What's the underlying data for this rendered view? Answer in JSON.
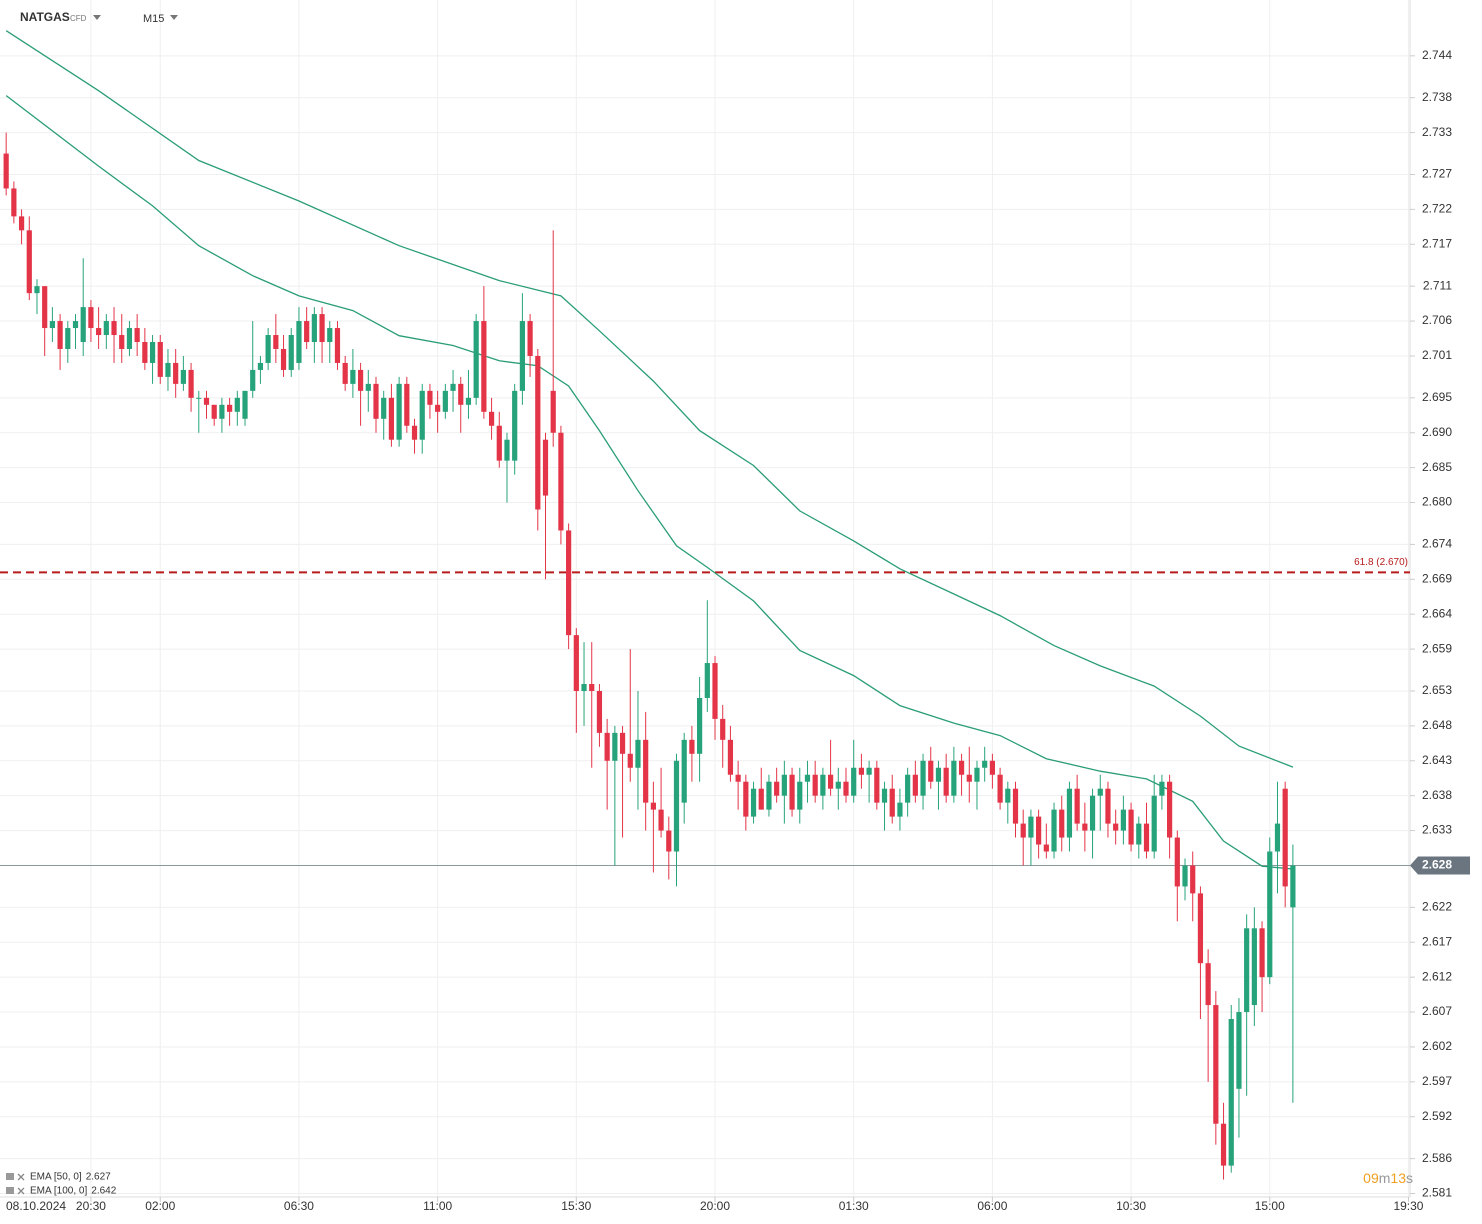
{
  "chart_data": {
    "type": "candlestick",
    "symbol": "NATGAS",
    "symbol_type": "CFD",
    "timeframe": "M15",
    "ylim": [
      2.5805,
      2.752
    ],
    "xlim": [
      -0.8,
      182.2
    ],
    "yticks": [
      2.744,
      2.738,
      2.733,
      2.727,
      2.722,
      2.717,
      2.711,
      2.706,
      2.701,
      2.695,
      {
        "value": 2.69,
        "label": "2.690"
      },
      2.685,
      {
        "value": 2.68,
        "label": "2.680"
      },
      2.674,
      2.669,
      2.664,
      2.659,
      2.653,
      2.648,
      2.643,
      2.638,
      2.633,
      2.622,
      2.617,
      2.612,
      2.607,
      2.602,
      2.597,
      2.592,
      2.586,
      2.581
    ],
    "date_label": "08.10.2024",
    "xticks": [
      {
        "value": 11,
        "label": "20:30"
      },
      {
        "value": 20,
        "label": "02:00"
      },
      {
        "value": 38,
        "label": "06:30"
      },
      {
        "value": 56,
        "label": "11:00"
      },
      {
        "value": 74,
        "label": "15:30"
      },
      {
        "value": 92,
        "label": "20:00"
      },
      {
        "value": 110,
        "label": "01:30"
      },
      {
        "value": 128,
        "label": "06:00"
      },
      {
        "value": 146,
        "label": "10:30"
      },
      {
        "value": 164,
        "label": "15:00"
      },
      {
        "value": 182,
        "label": "19:30"
      }
    ],
    "grid": true,
    "up_color": "#26a37a",
    "down_color": "#e33448",
    "current_price": 2.628,
    "fib_level": {
      "value": 2.67,
      "label": "61.8 (2.670)",
      "color": "#b71c1c"
    },
    "timer": {
      "minutes": "09",
      "m": "m",
      "seconds": "13",
      "s": "s"
    },
    "candles": [
      [
        2.73,
        2.733,
        2.724,
        2.725
      ],
      [
        2.725,
        2.726,
        2.72,
        2.721
      ],
      [
        2.721,
        2.722,
        2.717,
        2.719
      ],
      [
        2.719,
        2.721,
        2.709,
        2.71
      ],
      [
        2.71,
        2.712,
        2.707,
        2.711
      ],
      [
        2.711,
        2.711,
        2.701,
        2.705
      ],
      [
        2.705,
        2.708,
        2.703,
        2.706
      ],
      [
        2.706,
        2.707,
        2.699,
        2.702
      ],
      [
        2.702,
        2.706,
        2.7,
        2.705
      ],
      [
        2.705,
        2.707,
        2.702,
        2.706
      ],
      [
        2.703,
        2.715,
        2.701,
        2.708
      ],
      [
        2.708,
        2.709,
        2.703,
        2.705
      ],
      [
        2.705,
        2.708,
        2.702,
        2.704
      ],
      [
        2.704,
        2.707,
        2.702,
        2.706
      ],
      [
        2.706,
        2.708,
        2.7,
        2.704
      ],
      [
        2.704,
        2.707,
        2.7,
        2.702
      ],
      [
        2.702,
        2.706,
        2.701,
        2.705
      ],
      [
        2.705,
        2.707,
        2.701,
        2.703
      ],
      [
        2.703,
        2.705,
        2.699,
        2.7
      ],
      [
        2.7,
        2.704,
        2.697,
        2.703
      ],
      [
        2.703,
        2.704,
        2.697,
        2.698
      ],
      [
        2.698,
        2.702,
        2.696,
        2.7
      ],
      [
        2.7,
        2.702,
        2.695,
        2.697
      ],
      [
        2.697,
        2.701,
        2.696,
        2.699
      ],
      [
        2.699,
        2.7,
        2.693,
        2.695
      ],
      [
        2.695,
        2.696,
        2.69,
        2.695
      ],
      [
        2.695,
        2.696,
        2.692,
        2.694
      ],
      [
        2.694,
        2.694,
        2.691,
        2.692
      ],
      [
        2.692,
        2.695,
        2.69,
        2.694
      ],
      [
        2.694,
        2.695,
        2.691,
        2.693
      ],
      [
        2.693,
        2.696,
        2.691,
        2.695
      ],
      [
        2.692,
        2.696,
        2.691,
        2.696
      ],
      [
        2.696,
        2.706,
        2.695,
        2.699
      ],
      [
        2.699,
        2.701,
        2.697,
        2.7
      ],
      [
        2.7,
        2.705,
        2.699,
        2.704
      ],
      [
        2.704,
        2.707,
        2.7,
        2.702
      ],
      [
        2.702,
        2.704,
        2.698,
        2.699
      ],
      [
        2.699,
        2.705,
        2.698,
        2.704
      ],
      [
        2.7,
        2.708,
        2.699,
        2.706
      ],
      [
        2.706,
        2.708,
        2.702,
        2.703
      ],
      [
        2.703,
        2.708,
        2.7,
        2.707
      ],
      [
        2.707,
        2.708,
        2.7,
        2.703
      ],
      [
        2.703,
        2.706,
        2.7,
        2.705
      ],
      [
        2.705,
        2.706,
        2.699,
        2.7
      ],
      [
        2.7,
        2.701,
        2.696,
        2.697
      ],
      [
        2.697,
        2.702,
        2.695,
        2.699
      ],
      [
        2.699,
        2.7,
        2.691,
        2.696
      ],
      [
        2.696,
        2.699,
        2.693,
        2.697
      ],
      [
        2.697,
        2.698,
        2.69,
        2.692
      ],
      [
        2.692,
        2.696,
        2.689,
        2.695
      ],
      [
        2.695,
        2.697,
        2.688,
        2.689
      ],
      [
        2.689,
        2.698,
        2.688,
        2.697
      ],
      [
        2.697,
        2.698,
        2.69,
        2.691
      ],
      [
        2.691,
        2.692,
        2.687,
        2.689
      ],
      [
        2.689,
        2.697,
        2.687,
        2.696
      ],
      [
        2.696,
        2.697,
        2.692,
        2.694
      ],
      [
        2.694,
        2.696,
        2.69,
        2.693
      ],
      [
        2.693,
        2.697,
        2.692,
        2.696
      ],
      [
        2.696,
        2.699,
        2.693,
        2.697
      ],
      [
        2.697,
        2.698,
        2.69,
        2.694
      ],
      [
        2.694,
        2.699,
        2.692,
        2.695
      ],
      [
        2.695,
        2.707,
        2.694,
        2.706
      ],
      [
        2.706,
        2.711,
        2.692,
        2.693
      ],
      [
        2.693,
        2.695,
        2.689,
        2.691
      ],
      [
        2.691,
        2.693,
        2.685,
        2.686
      ],
      [
        2.686,
        2.69,
        2.68,
        2.689
      ],
      [
        2.686,
        2.697,
        2.684,
        2.696
      ],
      [
        2.696,
        2.71,
        2.694,
        2.706
      ],
      [
        2.706,
        2.707,
        2.698,
        2.701
      ],
      [
        2.701,
        2.702,
        2.676,
        2.679
      ],
      [
        2.689,
        2.69,
        2.669,
        2.681
      ],
      [
        2.696,
        2.719,
        2.688,
        2.69
      ],
      [
        2.69,
        2.691,
        2.674,
        2.676
      ],
      [
        2.676,
        2.677,
        2.659,
        2.661
      ],
      [
        2.661,
        2.662,
        2.647,
        2.653
      ],
      [
        2.653,
        2.66,
        2.648,
        2.654
      ],
      [
        2.654,
        2.66,
        2.642,
        2.653
      ],
      [
        2.653,
        2.654,
        2.645,
        2.647
      ],
      [
        2.647,
        2.649,
        2.636,
        2.643
      ],
      [
        2.643,
        2.648,
        2.628,
        2.647
      ],
      [
        2.647,
        2.648,
        2.632,
        2.644
      ],
      [
        2.644,
        2.659,
        2.64,
        2.642
      ],
      [
        2.642,
        2.653,
        2.636,
        2.646
      ],
      [
        2.646,
        2.65,
        2.633,
        2.637
      ],
      [
        2.637,
        2.64,
        2.627,
        2.636
      ],
      [
        2.636,
        2.642,
        2.632,
        2.633
      ],
      [
        2.633,
        2.635,
        2.626,
        2.63
      ],
      [
        2.63,
        2.644,
        2.625,
        2.643
      ],
      [
        2.637,
        2.647,
        2.634,
        2.646
      ],
      [
        2.646,
        2.648,
        2.64,
        2.644
      ],
      [
        2.644,
        2.655,
        2.64,
        2.652
      ],
      [
        2.652,
        2.666,
        2.65,
        2.657
      ],
      [
        2.657,
        2.658,
        2.646,
        2.649
      ],
      [
        2.649,
        2.651,
        2.642,
        2.646
      ],
      [
        2.646,
        2.648,
        2.64,
        2.641
      ],
      [
        2.641,
        2.643,
        2.636,
        2.64
      ],
      [
        2.64,
        2.641,
        2.633,
        2.635
      ],
      [
        2.635,
        2.64,
        2.634,
        2.639
      ],
      [
        2.639,
        2.642,
        2.636,
        2.636
      ],
      [
        2.636,
        2.641,
        2.635,
        2.64
      ],
      [
        2.64,
        2.642,
        2.637,
        2.638
      ],
      [
        2.638,
        2.643,
        2.634,
        2.641
      ],
      [
        2.641,
        2.642,
        2.635,
        2.636
      ],
      [
        2.636,
        2.642,
        2.634,
        2.64
      ],
      [
        2.64,
        2.643,
        2.637,
        2.641
      ],
      [
        2.641,
        2.643,
        2.637,
        2.638
      ],
      [
        2.638,
        2.642,
        2.636,
        2.641
      ],
      [
        2.641,
        2.646,
        2.638,
        2.639
      ],
      [
        2.639,
        2.642,
        2.636,
        2.64
      ],
      [
        2.64,
        2.642,
        2.637,
        2.638
      ],
      [
        2.638,
        2.646,
        2.637,
        2.642
      ],
      [
        2.642,
        2.644,
        2.639,
        2.641
      ],
      [
        2.641,
        2.643,
        2.637,
        2.642
      ],
      [
        2.642,
        2.643,
        2.636,
        2.637
      ],
      [
        2.637,
        2.64,
        2.633,
        2.639
      ],
      [
        2.639,
        2.641,
        2.634,
        2.635
      ],
      [
        2.635,
        2.639,
        2.633,
        2.637
      ],
      [
        2.637,
        2.642,
        2.635,
        2.641
      ],
      [
        2.641,
        2.643,
        2.637,
        2.638
      ],
      [
        2.638,
        2.644,
        2.636,
        2.643
      ],
      [
        2.643,
        2.645,
        2.639,
        2.64
      ],
      [
        2.64,
        2.643,
        2.636,
        2.642
      ],
      [
        2.642,
        2.644,
        2.637,
        2.638
      ],
      [
        2.638,
        2.645,
        2.637,
        2.643
      ],
      [
        2.643,
        2.644,
        2.638,
        2.641
      ],
      [
        2.641,
        2.645,
        2.637,
        2.64
      ],
      [
        2.64,
        2.643,
        2.636,
        2.642
      ],
      [
        2.642,
        2.645,
        2.64,
        2.643
      ],
      [
        2.643,
        2.644,
        2.639,
        2.641
      ],
      [
        2.641,
        2.642,
        2.636,
        2.637
      ],
      [
        2.637,
        2.64,
        2.634,
        2.639
      ],
      [
        2.639,
        2.64,
        2.632,
        2.634
      ],
      [
        2.634,
        2.636,
        2.628,
        2.632
      ],
      [
        2.632,
        2.636,
        2.628,
        2.635
      ],
      [
        2.635,
        2.636,
        2.629,
        2.631
      ],
      [
        2.631,
        2.634,
        2.629,
        2.63
      ],
      [
        2.63,
        2.637,
        2.629,
        2.636
      ],
      [
        2.636,
        2.638,
        2.63,
        2.632
      ],
      [
        2.632,
        2.64,
        2.63,
        2.639
      ],
      [
        2.639,
        2.641,
        2.633,
        2.634
      ],
      [
        2.634,
        2.637,
        2.63,
        2.633
      ],
      [
        2.633,
        2.639,
        2.629,
        2.638
      ],
      [
        2.638,
        2.641,
        2.633,
        2.639
      ],
      [
        2.639,
        2.64,
        2.632,
        2.634
      ],
      [
        2.634,
        2.636,
        2.631,
        2.633
      ],
      [
        2.633,
        2.638,
        2.631,
        2.636
      ],
      [
        2.636,
        2.637,
        2.63,
        2.631
      ],
      [
        2.631,
        2.635,
        2.629,
        2.634
      ],
      [
        2.634,
        2.637,
        2.629,
        2.63
      ],
      [
        2.63,
        2.641,
        2.629,
        2.638
      ],
      [
        2.638,
        2.641,
        2.636,
        2.64
      ],
      [
        2.64,
        2.641,
        2.629,
        2.632
      ],
      [
        2.632,
        2.633,
        2.62,
        2.625
      ],
      [
        2.625,
        2.629,
        2.623,
        2.628
      ],
      [
        2.628,
        2.63,
        2.62,
        2.624
      ],
      [
        2.624,
        2.625,
        2.606,
        2.614
      ],
      [
        2.614,
        2.616,
        2.597,
        2.608
      ],
      [
        2.608,
        2.61,
        2.588,
        2.591
      ],
      [
        2.591,
        2.594,
        2.583,
        2.585
      ],
      [
        2.585,
        2.608,
        2.584,
        2.606
      ],
      [
        2.596,
        2.609,
        2.589,
        2.607
      ],
      [
        2.607,
        2.621,
        2.595,
        2.619
      ],
      [
        2.608,
        2.622,
        2.605,
        2.619
      ],
      [
        2.619,
        2.62,
        2.607,
        2.612
      ],
      [
        2.612,
        2.632,
        2.611,
        2.63
      ],
      [
        2.63,
        2.64,
        2.624,
        2.634
      ],
      [
        2.639,
        2.64,
        2.622,
        2.625
      ],
      [
        2.622,
        2.631,
        2.594,
        2.628
      ]
    ],
    "series": [
      {
        "name": "EMA [50, 0]",
        "last": 2.627,
        "color": "#2a9d77",
        "x": [
          0,
          12,
          19,
          25,
          32,
          38,
          45,
          51,
          58,
          64,
          69,
          73,
          77,
          82,
          87,
          91,
          97,
          103,
          110,
          116,
          123,
          129,
          135,
          142,
          148,
          154,
          158,
          163,
          167
        ],
        "values": [
          2.7383,
          2.7282,
          2.7225,
          2.7168,
          2.7125,
          2.7096,
          2.7075,
          2.7039,
          2.7025,
          2.7003,
          2.6996,
          2.6967,
          2.6903,
          2.6817,
          2.6738,
          2.6707,
          2.6659,
          2.6588,
          2.6552,
          2.6509,
          2.6484,
          2.6466,
          2.6433,
          2.6415,
          2.6404,
          2.6372,
          2.6315,
          2.6279,
          2.6275
        ]
      },
      {
        "name": "EMA [100, 0]",
        "last": 2.642,
        "color": "#2a9d77",
        "x": [
          0,
          12,
          25,
          38,
          51,
          64,
          72,
          77,
          84,
          90,
          97,
          103,
          110,
          116,
          123,
          129,
          136,
          142,
          149,
          155,
          160,
          167
        ],
        "values": [
          2.7476,
          2.739,
          2.729,
          2.7232,
          2.7168,
          2.7118,
          2.7096,
          2.7046,
          2.6974,
          2.6903,
          2.6853,
          2.6788,
          2.6745,
          2.6705,
          2.6669,
          2.6638,
          2.6595,
          2.6566,
          2.6537,
          2.6494,
          2.6451,
          2.6421
        ]
      }
    ]
  }
}
